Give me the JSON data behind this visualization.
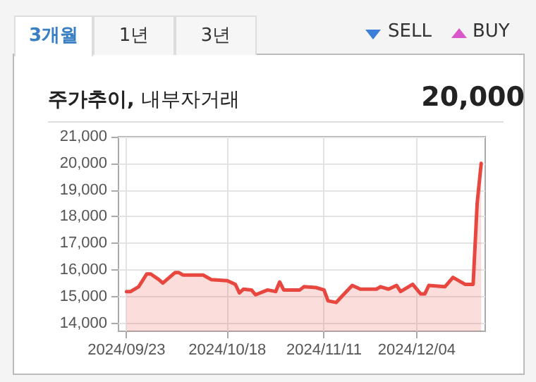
{
  "chart_data": {
    "type": "area",
    "title": "주가추이, 내부자거래",
    "annotations": [
      "3개월",
      "1년",
      "3년",
      "SELL",
      "BUY",
      "20,000"
    ],
    "x": [
      "2024-09-23",
      "2024-09-24",
      "2024-09-26",
      "2024-09-28",
      "2024-09-29",
      "2024-10-01",
      "2024-10-02",
      "2024-10-05",
      "2024-10-06",
      "2024-10-07",
      "2024-10-12",
      "2024-10-14",
      "2024-10-18",
      "2024-10-20",
      "2024-10-21",
      "2024-10-22",
      "2024-10-24",
      "2024-10-25",
      "2024-10-28",
      "2024-10-30",
      "2024-10-31",
      "2024-11-01",
      "2024-11-05",
      "2024-11-06",
      "2024-11-09",
      "2024-11-11",
      "2024-11-12",
      "2024-11-14",
      "2024-11-16",
      "2024-11-18",
      "2024-11-20",
      "2024-11-24",
      "2024-11-25",
      "2024-11-27",
      "2024-11-29",
      "2024-11-30",
      "2024-12-03",
      "2024-12-05",
      "2024-12-06",
      "2024-12-07",
      "2024-12-11",
      "2024-12-13",
      "2024-12-15",
      "2024-12-16",
      "2024-12-18",
      "2024-12-19",
      "2024-12-20"
    ],
    "series": [
      {
        "color": "#e8473f",
        "values": [
          15190,
          15190,
          15370,
          15850,
          15850,
          15640,
          15510,
          15900,
          15900,
          15810,
          15810,
          15640,
          15600,
          15460,
          15140,
          15280,
          15250,
          15070,
          15250,
          15190,
          15550,
          15250,
          15250,
          15370,
          15340,
          15250,
          14840,
          14780,
          15100,
          15420,
          15280,
          15280,
          15370,
          15280,
          15420,
          15190,
          15460,
          15100,
          15100,
          15420,
          15370,
          15720,
          15550,
          15460,
          15460,
          18500,
          20000
        ]
      }
    ],
    "xlim": [
      "2024-09-21",
      "2024-12-21"
    ],
    "xticks": [
      {
        "value": "2024-09-23",
        "label": "2024/09/23"
      },
      {
        "value": "2024-10-18",
        "label": "2024/10/18"
      },
      {
        "value": "2024-11-11",
        "label": "2024/11/11"
      },
      {
        "value": "2024-12-04",
        "label": "2024/12/04"
      }
    ],
    "ylim": [
      13700,
      21000
    ],
    "yticks": [
      {
        "value": 14000,
        "label": "14,000"
      },
      {
        "value": 15000,
        "label": "15,000"
      },
      {
        "value": 16000,
        "label": "16,000"
      },
      {
        "value": 17000,
        "label": "17,000"
      },
      {
        "value": 18000,
        "label": "18,000"
      },
      {
        "value": 19000,
        "label": "19,000"
      },
      {
        "value": 20000,
        "label": "20,000"
      },
      {
        "value": 21000,
        "label": "21,000"
      }
    ],
    "grid": true,
    "marker": "none",
    "line_style": "solid"
  }
}
